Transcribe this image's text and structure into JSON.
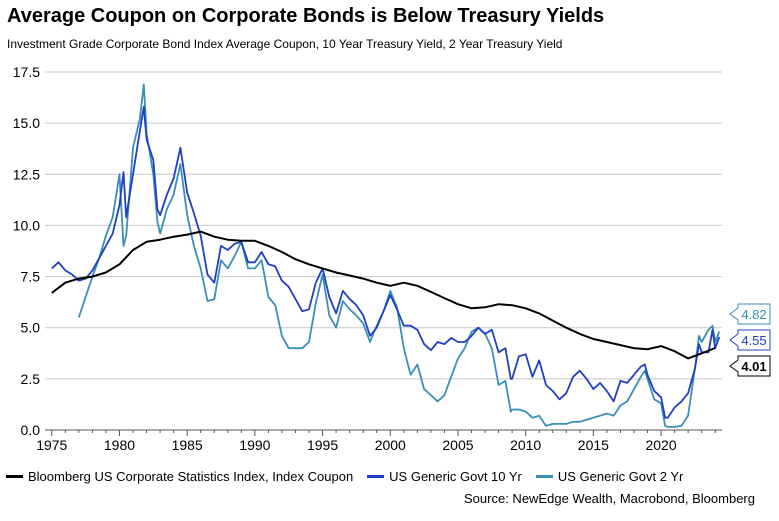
{
  "title": "Average Coupon on Corporate Bonds is Below Treasury Yields",
  "subtitle": "Investment Grade Corporate Bond Index Average Coupon, 10 Year Treasury Yield, 2 Year Treasury Yield",
  "source": "Source: NewEdge Wealth, Macrobond, Bloomberg",
  "chart_data": {
    "type": "line",
    "title": "Average Coupon on Corporate Bonds is Below Treasury Yields",
    "xlim": [
      1974.5,
      2024.5
    ],
    "ylim": [
      0,
      17.5
    ],
    "x_ticks": [
      "1975",
      "1980",
      "1985",
      "1990",
      "1995",
      "2000",
      "2005",
      "2010",
      "2015",
      "2020"
    ],
    "y_ticks": [
      "0.0",
      "2.5",
      "5.0",
      "7.5",
      "10.0",
      "12.5",
      "15.0",
      "17.5"
    ],
    "grid": true,
    "legend": "bottom",
    "end_labels": [
      {
        "series": "US Generic Govt 2 Yr",
        "text": "4.82"
      },
      {
        "series": "US Generic Govt 10 Yr",
        "text": "4.55"
      },
      {
        "series": "Bloomberg US Corporate Statistics Index, Index Coupon",
        "text": "4.01"
      }
    ],
    "series": [
      {
        "name": "Bloomberg US Corporate Statistics Index, Index Coupon",
        "color": "#000000",
        "points": [
          [
            1975.0,
            6.7
          ],
          [
            1976.0,
            7.2
          ],
          [
            1977.0,
            7.4
          ],
          [
            1978.0,
            7.5
          ],
          [
            1979.0,
            7.7
          ],
          [
            1980.0,
            8.1
          ],
          [
            1981.0,
            8.8
          ],
          [
            1982.0,
            9.2
          ],
          [
            1983.0,
            9.3
          ],
          [
            1984.0,
            9.45
          ],
          [
            1985.0,
            9.55
          ],
          [
            1986.0,
            9.7
          ],
          [
            1987.0,
            9.45
          ],
          [
            1988.0,
            9.3
          ],
          [
            1989.0,
            9.25
          ],
          [
            1990.0,
            9.25
          ],
          [
            1991.0,
            9.0
          ],
          [
            1992.0,
            8.7
          ],
          [
            1993.0,
            8.35
          ],
          [
            1994.0,
            8.1
          ],
          [
            1995.0,
            7.9
          ],
          [
            1996.0,
            7.7
          ],
          [
            1997.0,
            7.55
          ],
          [
            1998.0,
            7.4
          ],
          [
            1999.0,
            7.2
          ],
          [
            2000.0,
            7.05
          ],
          [
            2001.0,
            7.2
          ],
          [
            2002.0,
            7.05
          ],
          [
            2003.0,
            6.75
          ],
          [
            2004.0,
            6.45
          ],
          [
            2005.0,
            6.15
          ],
          [
            2006.0,
            5.95
          ],
          [
            2007.0,
            6.0
          ],
          [
            2008.0,
            6.15
          ],
          [
            2009.0,
            6.1
          ],
          [
            2010.0,
            5.95
          ],
          [
            2011.0,
            5.7
          ],
          [
            2012.0,
            5.35
          ],
          [
            2013.0,
            5.0
          ],
          [
            2014.0,
            4.7
          ],
          [
            2015.0,
            4.45
          ],
          [
            2016.0,
            4.3
          ],
          [
            2017.0,
            4.15
          ],
          [
            2018.0,
            4.0
          ],
          [
            2019.0,
            3.95
          ],
          [
            2020.0,
            4.1
          ],
          [
            2021.0,
            3.85
          ],
          [
            2022.0,
            3.5
          ],
          [
            2023.0,
            3.75
          ],
          [
            2024.0,
            4.01
          ]
        ]
      },
      {
        "name": "US Generic Govt 10 Yr",
        "color": "#1f3fc4",
        "points": [
          [
            1975.0,
            7.9
          ],
          [
            1975.5,
            8.2
          ],
          [
            1976.0,
            7.8
          ],
          [
            1976.5,
            7.6
          ],
          [
            1977.0,
            7.3
          ],
          [
            1977.5,
            7.4
          ],
          [
            1978.0,
            7.8
          ],
          [
            1978.5,
            8.4
          ],
          [
            1979.0,
            9.0
          ],
          [
            1979.5,
            9.6
          ],
          [
            1980.0,
            11.0
          ],
          [
            1980.3,
            12.6
          ],
          [
            1980.5,
            10.4
          ],
          [
            1981.0,
            12.5
          ],
          [
            1981.5,
            14.6
          ],
          [
            1981.8,
            15.8
          ],
          [
            1982.0,
            14.2
          ],
          [
            1982.5,
            13.2
          ],
          [
            1982.8,
            10.8
          ],
          [
            1983.0,
            10.5
          ],
          [
            1983.5,
            11.5
          ],
          [
            1984.0,
            12.3
          ],
          [
            1984.5,
            13.8
          ],
          [
            1985.0,
            11.6
          ],
          [
            1985.5,
            10.6
          ],
          [
            1986.0,
            9.5
          ],
          [
            1986.5,
            7.6
          ],
          [
            1987.0,
            7.2
          ],
          [
            1987.5,
            9.0
          ],
          [
            1988.0,
            8.8
          ],
          [
            1988.5,
            9.1
          ],
          [
            1989.0,
            9.2
          ],
          [
            1989.5,
            8.2
          ],
          [
            1990.0,
            8.2
          ],
          [
            1990.5,
            8.7
          ],
          [
            1991.0,
            8.1
          ],
          [
            1991.5,
            8.0
          ],
          [
            1992.0,
            7.3
          ],
          [
            1992.5,
            7.0
          ],
          [
            1993.0,
            6.4
          ],
          [
            1993.5,
            5.8
          ],
          [
            1994.0,
            5.9
          ],
          [
            1994.5,
            7.2
          ],
          [
            1995.0,
            7.9
          ],
          [
            1995.5,
            6.5
          ],
          [
            1996.0,
            5.7
          ],
          [
            1996.5,
            6.8
          ],
          [
            1997.0,
            6.4
          ],
          [
            1997.5,
            6.1
          ],
          [
            1998.0,
            5.6
          ],
          [
            1998.5,
            4.6
          ],
          [
            1999.0,
            5.0
          ],
          [
            1999.5,
            5.8
          ],
          [
            2000.0,
            6.6
          ],
          [
            2000.5,
            5.9
          ],
          [
            2001.0,
            5.1
          ],
          [
            2001.5,
            5.1
          ],
          [
            2002.0,
            4.9
          ],
          [
            2002.5,
            4.2
          ],
          [
            2003.0,
            3.9
          ],
          [
            2003.5,
            4.3
          ],
          [
            2004.0,
            4.2
          ],
          [
            2004.5,
            4.5
          ],
          [
            2005.0,
            4.3
          ],
          [
            2005.5,
            4.3
          ],
          [
            2006.0,
            4.6
          ],
          [
            2006.5,
            5.0
          ],
          [
            2007.0,
            4.7
          ],
          [
            2007.5,
            4.9
          ],
          [
            2008.0,
            3.8
          ],
          [
            2008.5,
            4.0
          ],
          [
            2008.9,
            2.5
          ],
          [
            2009.0,
            2.5
          ],
          [
            2009.5,
            3.6
          ],
          [
            2010.0,
            3.7
          ],
          [
            2010.5,
            2.6
          ],
          [
            2011.0,
            3.4
          ],
          [
            2011.5,
            2.2
          ],
          [
            2012.0,
            1.9
          ],
          [
            2012.5,
            1.5
          ],
          [
            2013.0,
            1.8
          ],
          [
            2013.5,
            2.6
          ],
          [
            2014.0,
            2.9
          ],
          [
            2014.5,
            2.5
          ],
          [
            2015.0,
            2.0
          ],
          [
            2015.5,
            2.3
          ],
          [
            2016.0,
            1.9
          ],
          [
            2016.5,
            1.4
          ],
          [
            2017.0,
            2.4
          ],
          [
            2017.5,
            2.3
          ],
          [
            2018.0,
            2.7
          ],
          [
            2018.5,
            3.1
          ],
          [
            2018.8,
            3.2
          ],
          [
            2019.0,
            2.7
          ],
          [
            2019.5,
            1.9
          ],
          [
            2020.0,
            1.6
          ],
          [
            2020.3,
            0.6
          ],
          [
            2020.5,
            0.6
          ],
          [
            2021.0,
            1.1
          ],
          [
            2021.5,
            1.4
          ],
          [
            2022.0,
            1.8
          ],
          [
            2022.5,
            3.0
          ],
          [
            2022.8,
            4.2
          ],
          [
            2023.0,
            3.8
          ],
          [
            2023.5,
            3.8
          ],
          [
            2023.8,
            4.9
          ],
          [
            2024.0,
            4.0
          ],
          [
            2024.3,
            4.55
          ]
        ]
      },
      {
        "name": "US Generic Govt 2 Yr",
        "color": "#3a8fb7",
        "points": [
          [
            1977.0,
            5.5
          ],
          [
            1977.5,
            6.5
          ],
          [
            1978.0,
            7.5
          ],
          [
            1978.5,
            8.4
          ],
          [
            1979.0,
            9.5
          ],
          [
            1979.5,
            10.4
          ],
          [
            1980.0,
            12.5
          ],
          [
            1980.3,
            9.0
          ],
          [
            1980.5,
            9.5
          ],
          [
            1981.0,
            13.8
          ],
          [
            1981.5,
            15.2
          ],
          [
            1981.8,
            16.9
          ],
          [
            1982.0,
            14.5
          ],
          [
            1982.5,
            12.5
          ],
          [
            1982.8,
            10.2
          ],
          [
            1983.0,
            9.6
          ],
          [
            1983.5,
            10.8
          ],
          [
            1984.0,
            11.5
          ],
          [
            1984.5,
            13.0
          ],
          [
            1985.0,
            10.5
          ],
          [
            1985.5,
            9.0
          ],
          [
            1986.0,
            7.9
          ],
          [
            1986.5,
            6.3
          ],
          [
            1987.0,
            6.4
          ],
          [
            1987.5,
            8.3
          ],
          [
            1988.0,
            7.9
          ],
          [
            1988.5,
            8.5
          ],
          [
            1989.0,
            9.2
          ],
          [
            1989.5,
            7.9
          ],
          [
            1990.0,
            7.9
          ],
          [
            1990.5,
            8.3
          ],
          [
            1991.0,
            6.5
          ],
          [
            1991.5,
            6.1
          ],
          [
            1992.0,
            4.6
          ],
          [
            1992.5,
            4.0
          ],
          [
            1993.0,
            4.0
          ],
          [
            1993.5,
            4.0
          ],
          [
            1994.0,
            4.3
          ],
          [
            1994.5,
            6.2
          ],
          [
            1995.0,
            7.6
          ],
          [
            1995.5,
            5.6
          ],
          [
            1996.0,
            5.0
          ],
          [
            1996.5,
            6.3
          ],
          [
            1997.0,
            5.9
          ],
          [
            1997.5,
            5.6
          ],
          [
            1998.0,
            5.2
          ],
          [
            1998.5,
            4.3
          ],
          [
            1999.0,
            5.1
          ],
          [
            1999.5,
            5.8
          ],
          [
            2000.0,
            6.8
          ],
          [
            2000.5,
            6.0
          ],
          [
            2001.0,
            4.0
          ],
          [
            2001.5,
            2.7
          ],
          [
            2002.0,
            3.2
          ],
          [
            2002.5,
            2.0
          ],
          [
            2003.0,
            1.7
          ],
          [
            2003.5,
            1.4
          ],
          [
            2004.0,
            1.7
          ],
          [
            2004.5,
            2.6
          ],
          [
            2005.0,
            3.5
          ],
          [
            2005.5,
            4.0
          ],
          [
            2006.0,
            4.8
          ],
          [
            2006.5,
            5.0
          ],
          [
            2007.0,
            4.7
          ],
          [
            2007.5,
            4.0
          ],
          [
            2008.0,
            2.2
          ],
          [
            2008.5,
            2.4
          ],
          [
            2008.9,
            0.9
          ],
          [
            2009.0,
            1.0
          ],
          [
            2009.5,
            1.0
          ],
          [
            2010.0,
            0.9
          ],
          [
            2010.5,
            0.6
          ],
          [
            2011.0,
            0.7
          ],
          [
            2011.5,
            0.2
          ],
          [
            2012.0,
            0.3
          ],
          [
            2012.5,
            0.3
          ],
          [
            2013.0,
            0.3
          ],
          [
            2013.5,
            0.4
          ],
          [
            2014.0,
            0.4
          ],
          [
            2014.5,
            0.5
          ],
          [
            2015.0,
            0.6
          ],
          [
            2015.5,
            0.7
          ],
          [
            2016.0,
            0.8
          ],
          [
            2016.5,
            0.7
          ],
          [
            2017.0,
            1.2
          ],
          [
            2017.5,
            1.4
          ],
          [
            2018.0,
            2.0
          ],
          [
            2018.5,
            2.6
          ],
          [
            2018.8,
            2.9
          ],
          [
            2019.0,
            2.5
          ],
          [
            2019.5,
            1.5
          ],
          [
            2020.0,
            1.3
          ],
          [
            2020.3,
            0.2
          ],
          [
            2020.5,
            0.15
          ],
          [
            2021.0,
            0.15
          ],
          [
            2021.5,
            0.2
          ],
          [
            2022.0,
            0.7
          ],
          [
            2022.5,
            3.0
          ],
          [
            2022.8,
            4.6
          ],
          [
            2023.0,
            4.3
          ],
          [
            2023.5,
            4.9
          ],
          [
            2023.8,
            5.1
          ],
          [
            2024.0,
            4.3
          ],
          [
            2024.3,
            4.82
          ]
        ]
      }
    ]
  }
}
